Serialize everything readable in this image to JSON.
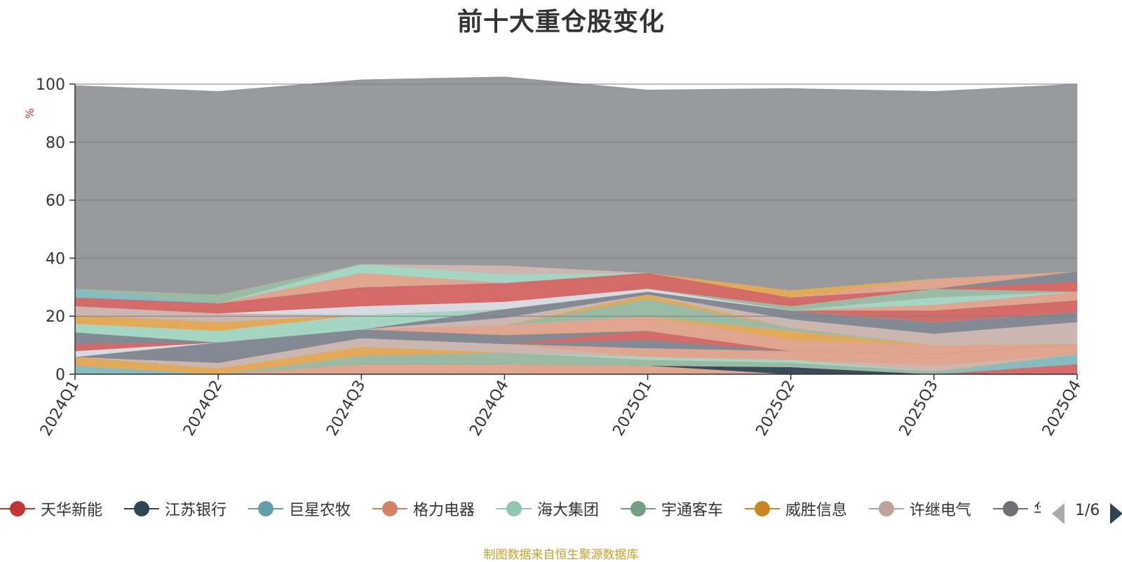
{
  "chart_data": {
    "type": "area",
    "stacked": true,
    "title": "前十大重仓股变化",
    "ylabel": "%",
    "ylim": [
      0,
      100
    ],
    "yticks": [
      0,
      20,
      40,
      60,
      80,
      100
    ],
    "categories": [
      "2024Q1",
      "2024Q2",
      "2024Q3",
      "2024Q4",
      "2025Q1",
      "2025Q2",
      "2025Q3",
      "2025Q4"
    ],
    "series": [
      {
        "color": "#e0a58e",
        "values": [
          0,
          0,
          3.5,
          3.5,
          3,
          0,
          0,
          0
        ]
      },
      {
        "color": "#3b4b5c",
        "values": [
          0,
          0,
          0,
          0,
          0,
          2.5,
          0,
          0
        ]
      },
      {
        "color": "#d46b69",
        "values": [
          0,
          0,
          0,
          0,
          0,
          0,
          0,
          3.5
        ]
      },
      {
        "color": "#86bcc0",
        "values": [
          3,
          0,
          0,
          0,
          0,
          0,
          0,
          3.5
        ]
      },
      {
        "color": "#9bbaa3",
        "values": [
          0,
          0,
          3,
          4,
          2,
          1.5,
          1,
          0
        ]
      },
      {
        "color": "#a5d6c3",
        "values": [
          0,
          0,
          0,
          0,
          1,
          1,
          0,
          0
        ]
      },
      {
        "color": "#e2aa58",
        "values": [
          3,
          2,
          3,
          0,
          0,
          0,
          0,
          0
        ]
      },
      {
        "color": "#ccb6b0",
        "values": [
          0,
          2,
          3,
          3,
          0,
          0,
          2,
          0
        ]
      },
      {
        "color": "#e0a58e",
        "values": [
          0,
          0,
          0,
          0,
          3,
          3,
          4,
          3.5
        ]
      },
      {
        "color": "#838a93",
        "values": [
          0,
          0,
          0,
          0,
          3,
          0,
          0,
          0
        ]
      },
      {
        "color": "#e0a58e",
        "values": [
          0,
          0,
          0,
          0,
          0,
          0,
          0,
          0
        ]
      },
      {
        "color": "#d46b69",
        "values": [
          0,
          0,
          0,
          0,
          0,
          0,
          0,
          0
        ]
      },
      {
        "color": "#d46b69",
        "values": [
          0,
          0,
          0,
          0,
          3,
          0,
          0,
          0
        ]
      },
      {
        "color": "#838a93",
        "values": [
          0,
          7,
          3,
          3,
          0,
          0,
          0,
          0
        ]
      },
      {
        "color": "#e0a58e",
        "values": [
          0,
          0,
          0,
          3.5,
          5,
          4,
          3,
          0
        ]
      },
      {
        "color": "#ccb6b0",
        "values": [
          0,
          0,
          0,
          0,
          0,
          0,
          0,
          4
        ]
      },
      {
        "color": "#e2aa58",
        "values": [
          0,
          0,
          0,
          0,
          0,
          3,
          0,
          0
        ]
      },
      {
        "color": "#d6dae2",
        "values": [
          0,
          0,
          0,
          0,
          0,
          0,
          0,
          0
        ]
      },
      {
        "color": "#9bbaa3",
        "values": [
          0,
          0,
          0,
          0,
          6,
          1,
          0,
          0
        ]
      },
      {
        "color": "#e2aa58",
        "values": [
          0,
          0,
          0,
          0,
          1.5,
          0,
          0,
          0
        ]
      },
      {
        "color": "#ccb6b0",
        "values": [
          0,
          0,
          0,
          2.5,
          0,
          3,
          4,
          3.5
        ]
      },
      {
        "color": "#838a93",
        "values": [
          0,
          0,
          0,
          3,
          1,
          3,
          4,
          3.5
        ]
      },
      {
        "color": "#d6dae2",
        "values": [
          0,
          0,
          0,
          0,
          0,
          0,
          0,
          0
        ]
      },
      {
        "color": "#d6dae2",
        "values": [
          2,
          0,
          0,
          0,
          0,
          0,
          0,
          0
        ]
      },
      {
        "color": "#a5d6c3",
        "values": [
          0,
          0,
          2,
          0,
          0,
          0,
          0,
          0
        ]
      },
      {
        "color": "#d46b69",
        "values": [
          2.5,
          0,
          0,
          0,
          0,
          0,
          4,
          4
        ]
      },
      {
        "color": "#838a93",
        "values": [
          4,
          0,
          0,
          0,
          0,
          0,
          0,
          0
        ]
      },
      {
        "color": "#e0a58e",
        "values": [
          0,
          0,
          0,
          0,
          0,
          0,
          2,
          3
        ]
      },
      {
        "color": "#a5d6c3",
        "values": [
          3,
          4,
          3,
          0,
          0,
          0,
          2.5,
          0
        ]
      },
      {
        "color": "#e2aa58",
        "values": [
          3,
          3,
          0,
          0,
          0,
          0,
          0,
          0
        ]
      },
      {
        "color": "#ccb6b0",
        "values": [
          3,
          3,
          0,
          0,
          0,
          0,
          0,
          0
        ]
      },
      {
        "color": "#d6dae2",
        "values": [
          0,
          0,
          3,
          2.5,
          1,
          0,
          0,
          0
        ]
      },
      {
        "color": "#9bbaa3",
        "values": [
          0,
          0,
          0,
          0,
          0,
          1.5,
          3,
          0
        ]
      },
      {
        "color": "#d46b69",
        "values": [
          3,
          3.5,
          6.5,
          6.5,
          5.5,
          3,
          0,
          3.5
        ]
      },
      {
        "color": "#838a93",
        "values": [
          0,
          0,
          0,
          0,
          0,
          0,
          0,
          3.5
        ]
      },
      {
        "color": "#86bcc0",
        "values": [
          3,
          0,
          0,
          0,
          0,
          0,
          0,
          0
        ]
      },
      {
        "color": "#e0a58e",
        "values": [
          0,
          0,
          5,
          0,
          0,
          0,
          3.5,
          0
        ]
      },
      {
        "color": "#a5d6c3",
        "values": [
          0,
          0,
          3,
          3,
          0,
          0,
          0,
          0
        ]
      },
      {
        "color": "#9bbaa3",
        "values": [
          0,
          3,
          0,
          0,
          0,
          0,
          0,
          0
        ]
      },
      {
        "color": "#ccb6b0",
        "values": [
          0,
          0,
          0,
          3,
          0,
          0,
          0,
          0
        ]
      },
      {
        "color": "#e2aa58",
        "values": [
          0,
          0,
          0,
          0,
          0,
          2.5,
          0,
          0
        ]
      },
      {
        "color": "#98999d",
        "values": [
          70,
          70,
          63.5,
          65,
          63,
          69.5,
          64.5,
          64.5
        ]
      }
    ],
    "legend": {
      "position": "bottom",
      "items": [
        {
          "name": "天华新能",
          "color": "#c23531"
        },
        {
          "name": "江苏银行",
          "color": "#2f4554"
        },
        {
          "name": "巨星农牧",
          "color": "#61a0a8"
        },
        {
          "name": "格力电器",
          "color": "#d48265"
        },
        {
          "name": "海大集团",
          "color": "#91c7ae"
        },
        {
          "name": "宇通客车",
          "color": "#749f83"
        },
        {
          "name": "威胜信息",
          "color": "#ca8622"
        },
        {
          "name": "许继电气",
          "color": "#bda29a"
        },
        {
          "name": "华",
          "color": "#6e7074"
        }
      ],
      "page": "1/6"
    }
  },
  "source_note": "制图数据来自恒生聚源数据库"
}
